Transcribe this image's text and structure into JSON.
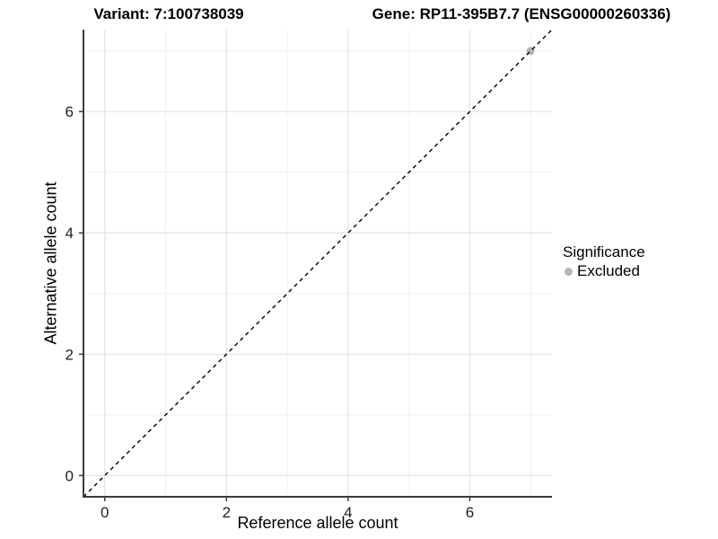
{
  "titles": {
    "variant": "Variant: 7:100738039",
    "gene": "Gene: RP11-395B7.7 (ENSG00000260336)"
  },
  "chart_data": {
    "type": "scatter",
    "title_left": "Variant: 7:100738039",
    "title_right": "Gene: RP11-395B7.7 (ENSG00000260336)",
    "xlabel": "Reference allele count",
    "ylabel": "Alternative allele count",
    "xlim": [
      -0.35,
      7.35
    ],
    "ylim": [
      -0.35,
      7.35
    ],
    "x_ticks": [
      0,
      2,
      4,
      6
    ],
    "y_ticks": [
      0,
      2,
      4,
      6
    ],
    "x_minor_gridlines": [
      1,
      3,
      5,
      7
    ],
    "y_minor_gridlines": [
      1,
      3,
      5,
      7
    ],
    "grid": true,
    "series": [
      {
        "name": "Excluded",
        "color": "#b5b5b5",
        "points": [
          {
            "x": 7,
            "y": 7
          }
        ]
      }
    ],
    "reference_line": {
      "type": "identity y = x",
      "slope": 1,
      "intercept": 0,
      "style": "dashed",
      "color": "#000000"
    },
    "legend": {
      "title": "Significance",
      "position": "right",
      "entries": [
        {
          "label": "Excluded",
          "color": "#b5b5b5"
        }
      ]
    }
  },
  "colors": {
    "background": "#ffffff",
    "major_grid": "#e3e3e3",
    "minor_grid": "#f0f0f0",
    "axis_line": "#3c3c3c",
    "tick_label": "#1f1f1f"
  }
}
